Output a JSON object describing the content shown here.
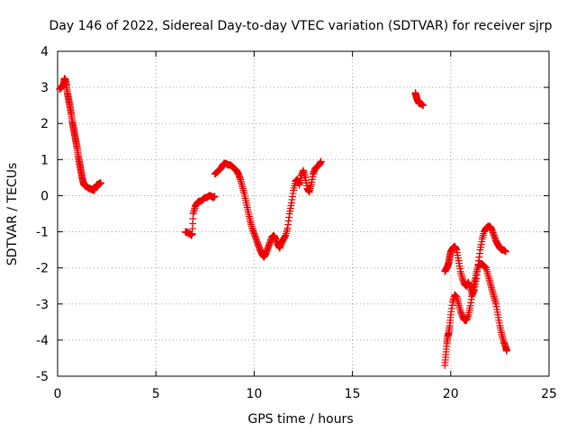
{
  "chart_data": {
    "type": "scatter",
    "title": "Day 146 of 2022, Sidereal Day-to-day VTEC variation (SDTVAR) for receiver sjrp",
    "xlabel": "GPS time / hours",
    "ylabel": "SDTVAR / TECUs",
    "xlim": [
      0,
      25
    ],
    "ylim": [
      -5,
      4
    ],
    "xticks": [
      "0",
      "5",
      "10",
      "15",
      "20",
      "25"
    ],
    "yticks": [
      "4",
      "3",
      "2",
      "1",
      "0",
      "-1",
      "-2",
      "-3",
      "-4",
      "-5"
    ],
    "grid": true,
    "marker": "+",
    "color": "#ee0000",
    "series": [
      {
        "name": "seg1",
        "x": [
          0.1,
          0.2,
          0.3,
          0.35,
          0.4,
          0.45,
          0.5,
          0.55,
          0.6,
          0.65,
          0.7,
          0.75,
          0.8,
          0.85,
          0.9,
          0.95,
          1.0,
          1.05,
          1.1,
          1.15,
          1.2,
          1.25,
          1.3,
          1.35,
          1.4,
          1.45,
          1.5,
          1.55,
          1.6,
          1.65,
          1.7,
          1.75,
          1.8,
          1.85,
          1.9,
          1.95,
          2.0,
          2.05,
          2.1,
          2.15,
          2.2
        ],
        "y": [
          2.95,
          3.0,
          3.1,
          3.25,
          3.2,
          3.05,
          2.85,
          2.7,
          2.55,
          2.4,
          2.25,
          2.05,
          1.9,
          1.75,
          1.6,
          1.45,
          1.3,
          1.1,
          0.95,
          0.8,
          0.65,
          0.5,
          0.38,
          0.3,
          0.28,
          0.25,
          0.25,
          0.22,
          0.2,
          0.2,
          0.18,
          0.18,
          0.15,
          0.15,
          0.2,
          0.25,
          0.3,
          0.32,
          0.3,
          0.35,
          0.35
        ]
      },
      {
        "name": "seg2",
        "x": [
          6.5,
          6.55,
          6.6,
          6.65,
          6.7,
          6.75,
          6.8,
          6.85,
          6.9,
          7.0,
          7.1,
          7.2,
          7.3,
          7.4,
          7.5,
          7.6,
          7.7,
          7.8,
          7.9,
          8.0
        ],
        "y": [
          -1.0,
          -1.02,
          -1.0,
          -1.05,
          -1.05,
          -1.05,
          -1.1,
          -1.05,
          -0.5,
          -0.3,
          -0.2,
          -0.15,
          -0.15,
          -0.1,
          -0.05,
          -0.05,
          0.0,
          0.0,
          -0.05,
          -0.02
        ]
      },
      {
        "name": "seg3",
        "x": [
          8.0,
          8.1,
          8.2,
          8.3,
          8.4,
          8.5,
          8.6,
          8.7,
          8.8,
          8.9,
          9.0,
          9.1,
          9.2,
          9.3,
          9.4,
          9.5,
          9.6,
          9.7,
          9.8,
          9.9,
          10.0,
          10.1,
          10.2,
          10.3,
          10.4,
          10.5,
          10.6,
          10.7,
          10.8,
          10.9,
          11.0,
          11.1,
          11.2,
          11.3,
          11.4,
          11.5,
          11.6,
          11.7,
          11.8,
          11.9,
          12.0,
          12.1,
          12.2,
          12.3,
          12.4,
          12.5,
          12.6,
          12.7,
          12.8,
          12.9,
          13.0,
          13.1,
          13.2,
          13.3,
          13.4
        ],
        "y": [
          0.6,
          0.65,
          0.7,
          0.75,
          0.85,
          0.9,
          0.88,
          0.85,
          0.85,
          0.8,
          0.75,
          0.7,
          0.6,
          0.45,
          0.25,
          0.05,
          -0.2,
          -0.45,
          -0.7,
          -0.9,
          -1.05,
          -1.2,
          -1.35,
          -1.5,
          -1.62,
          -1.7,
          -1.6,
          -1.45,
          -1.3,
          -1.15,
          -1.1,
          -1.2,
          -1.35,
          -1.45,
          -1.3,
          -1.2,
          -1.1,
          -0.9,
          -0.5,
          -0.2,
          0.15,
          0.4,
          0.45,
          0.3,
          0.55,
          0.7,
          0.5,
          0.2,
          0.1,
          0.3,
          0.6,
          0.75,
          0.8,
          0.85,
          0.95
        ]
      },
      {
        "name": "seg4",
        "x": [
          18.2,
          18.25,
          18.3,
          18.35,
          18.4,
          18.5,
          18.6
        ],
        "y": [
          2.85,
          2.75,
          2.65,
          2.6,
          2.55,
          2.55,
          2.5
        ]
      },
      {
        "name": "seg5",
        "x": [
          19.7,
          19.75,
          19.8,
          19.85,
          19.9,
          19.95,
          20.0,
          20.1,
          20.2,
          20.3,
          20.4,
          20.5,
          20.6,
          20.7,
          20.8,
          20.9,
          21.0,
          21.1,
          21.2,
          21.3,
          21.4,
          21.5,
          21.6,
          21.7,
          21.8,
          21.9,
          22.0,
          22.1,
          22.2,
          22.3,
          22.4,
          22.5,
          22.6,
          22.7,
          22.8
        ],
        "y": [
          -2.1,
          -2.05,
          -2.0,
          -1.95,
          -1.85,
          -1.7,
          -1.55,
          -1.45,
          -1.4,
          -1.5,
          -1.8,
          -2.1,
          -2.3,
          -2.45,
          -2.5,
          -2.4,
          -2.55,
          -2.75,
          -2.6,
          -2.3,
          -1.9,
          -1.5,
          -1.2,
          -1.0,
          -0.9,
          -0.85,
          -0.85,
          -0.95,
          -1.1,
          -1.25,
          -1.35,
          -1.45,
          -1.5,
          -1.5,
          -1.55
        ]
      },
      {
        "name": "seg6",
        "x": [
          19.7,
          19.75,
          19.8,
          19.85,
          19.9,
          19.95,
          20.0,
          20.1,
          20.2,
          20.3,
          20.4,
          20.5,
          20.6,
          20.7,
          20.8,
          20.9,
          21.0,
          21.1,
          21.2,
          21.3,
          21.4,
          21.5,
          21.6,
          21.7,
          21.8,
          21.9,
          22.0,
          22.1,
          22.2,
          22.3,
          22.4,
          22.5,
          22.6,
          22.7,
          22.8,
          22.85
        ],
        "y": [
          -4.7,
          -4.4,
          -4.1,
          -3.9,
          -3.8,
          -3.6,
          -3.3,
          -2.95,
          -2.75,
          -2.8,
          -3.0,
          -3.2,
          -3.35,
          -3.45,
          -3.45,
          -3.3,
          -3.05,
          -2.7,
          -2.4,
          -2.15,
          -1.95,
          -1.9,
          -1.9,
          -1.95,
          -2.0,
          -2.2,
          -2.4,
          -2.6,
          -2.8,
          -3.0,
          -3.3,
          -3.6,
          -3.85,
          -4.05,
          -4.2,
          -4.3
        ]
      }
    ]
  }
}
